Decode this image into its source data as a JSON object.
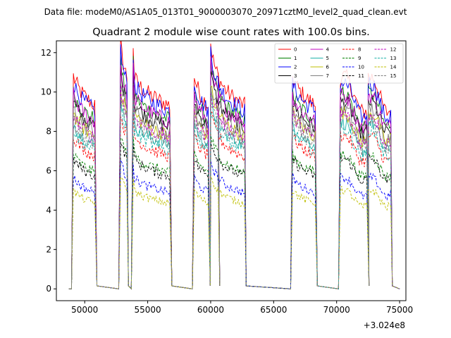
{
  "figure": {
    "suptitle": "Data file: modeM0/AS1A05_013T01_9000003070_20971cztM0_level2_quad_clean.evt"
  },
  "chart_data": {
    "type": "line",
    "title": "Quadrant 2 module wise count rates with 100.0s bins.",
    "xlabel": "",
    "ylabel": "",
    "x_offset_label": "+3.024e8",
    "xlim": [
      47750,
      75500
    ],
    "ylim": [
      -0.6,
      12.6
    ],
    "xticks": [
      50000,
      55000,
      60000,
      65000,
      70000,
      75000
    ],
    "xtick_labels": [
      "50000",
      "55000",
      "60000",
      "65000",
      "70000",
      "75000"
    ],
    "yticks": [
      0,
      2,
      4,
      6,
      8,
      10,
      12
    ],
    "ytick_labels": [
      "0",
      "2",
      "4",
      "6",
      "8",
      "10",
      "12"
    ],
    "segments": [
      [
        49100,
        50850
      ],
      [
        52850,
        53350
      ],
      [
        53850,
        56800
      ],
      [
        58700,
        59850
      ],
      [
        60000,
        60600
      ],
      [
        60600,
        62700
      ],
      [
        66500,
        68350
      ],
      [
        70300,
        72450
      ],
      [
        72500,
        74300
      ]
    ],
    "series": [
      {
        "name": "0",
        "color": "#ff0000",
        "dash": "solid",
        "level": 10.1
      },
      {
        "name": "1",
        "color": "#008000",
        "dash": "solid",
        "level": 9.3
      },
      {
        "name": "2",
        "color": "#0000ff",
        "dash": "solid",
        "level": 9.8
      },
      {
        "name": "3",
        "color": "#000000",
        "dash": "solid",
        "level": 8.9
      },
      {
        "name": "4",
        "color": "#bf00bf",
        "dash": "solid",
        "level": 9.2
      },
      {
        "name": "5",
        "color": "#20b2aa",
        "dash": "solid",
        "level": 7.9
      },
      {
        "name": "6",
        "color": "#bfbf00",
        "dash": "solid",
        "level": 8.4
      },
      {
        "name": "7",
        "color": "#808080",
        "dash": "solid",
        "level": 8.6
      },
      {
        "name": "8",
        "color": "#ff0000",
        "dash": "dashed",
        "level": 7.3
      },
      {
        "name": "9",
        "color": "#008000",
        "dash": "dashed",
        "level": 6.4
      },
      {
        "name": "10",
        "color": "#0000ff",
        "dash": "dashed",
        "level": 5.3
      },
      {
        "name": "11",
        "color": "#000000",
        "dash": "dashed",
        "level": 6.2
      },
      {
        "name": "12",
        "color": "#bf00bf",
        "dash": "dashed",
        "level": 8.3
      },
      {
        "name": "13",
        "color": "#20b2aa",
        "dash": "dashed",
        "level": 7.6
      },
      {
        "name": "14",
        "color": "#bfbf00",
        "dash": "dashed",
        "level": 4.7
      },
      {
        "name": "15",
        "color": "#808080",
        "dash": "dashed",
        "level": 8.0
      }
    ],
    "legend": {
      "location": "upper right",
      "columns": 4
    }
  }
}
